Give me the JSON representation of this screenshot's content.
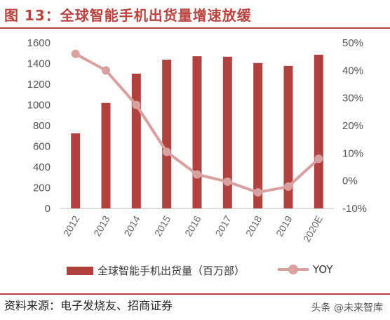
{
  "title": "图 13：全球智能手机出货量增速放缓",
  "source": "资料来源：电子发烧友、招商证券",
  "watermark": "头条 @未来智库",
  "colors": {
    "accent": "#b9443f",
    "bar": "#b0413e",
    "line": "#d9a0a0"
  },
  "chart_data": {
    "type": "bar",
    "categories": [
      "2012",
      "2013",
      "2014",
      "2015",
      "2016",
      "2017",
      "2018",
      "2019",
      "2020E"
    ],
    "series": [
      {
        "name": "全球智能手机出货量（百万部）",
        "type": "bar",
        "axis": "left",
        "values": [
          725,
          1019,
          1302,
          1437,
          1470,
          1466,
          1405,
          1377,
          1485
        ]
      },
      {
        "name": "YOY",
        "type": "line",
        "axis": "right",
        "values": [
          46,
          40,
          27.5,
          10.5,
          2.3,
          -0.3,
          -4.2,
          -2.1,
          8
        ]
      }
    ],
    "left_axis": {
      "ylim": [
        0,
        1600
      ],
      "ticks": [
        "0",
        "200",
        "400",
        "600",
        "800",
        "1000",
        "1200",
        "1400",
        "1600"
      ]
    },
    "right_axis": {
      "ylim": [
        -10,
        50
      ],
      "ticks": [
        "-10%",
        "0%",
        "10%",
        "20%",
        "30%",
        "40%",
        "50%"
      ]
    },
    "grid": false,
    "legend_position": "bottom"
  }
}
